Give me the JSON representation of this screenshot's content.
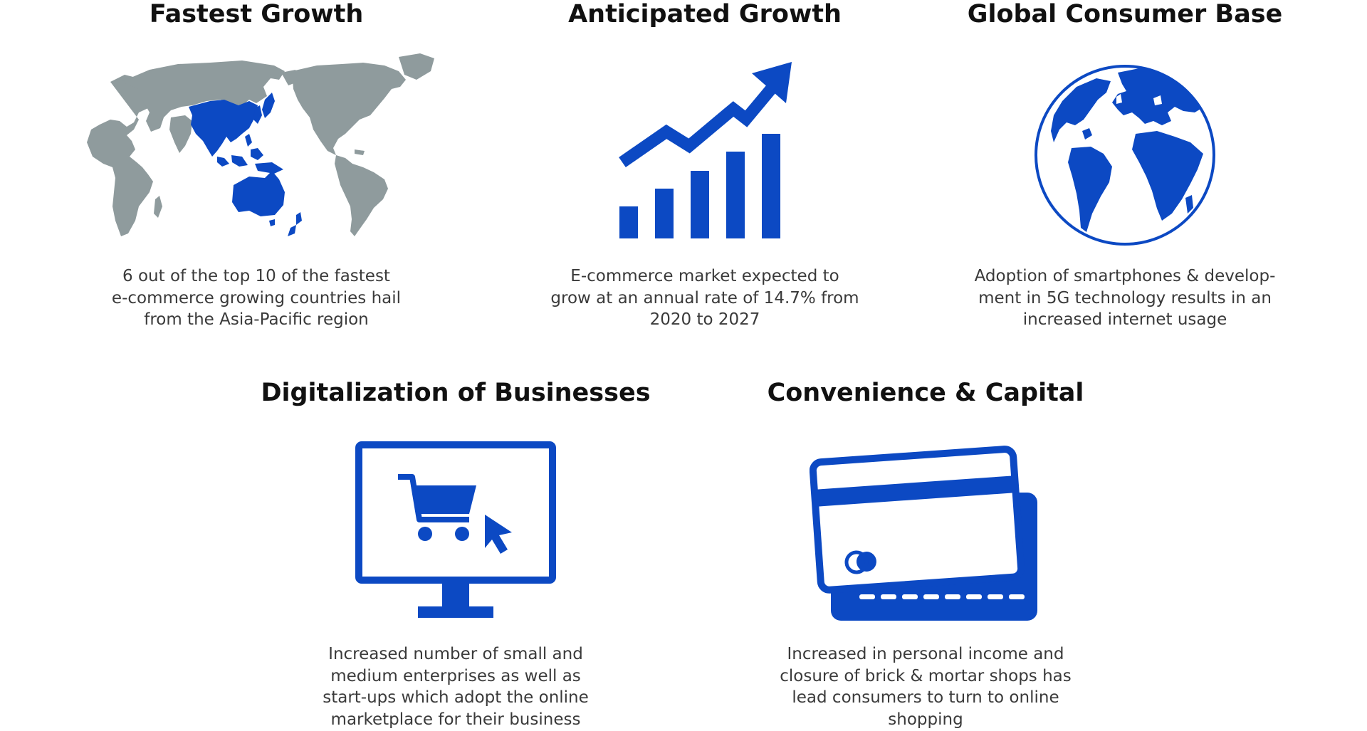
{
  "colors": {
    "accent": "#0c49c3",
    "map_land": "#8f9b9d",
    "text": "#3a3a3a",
    "title": "#111111"
  },
  "cards": [
    {
      "title": "Fastest Growth",
      "icon": "world-map-icon",
      "lines": [
        "6 out of the top 10 of the fastest",
        "e-commerce growing countries hail",
        "from the Asia-Pacific region"
      ]
    },
    {
      "title": "Anticipated Growth",
      "icon": "growth-chart-icon",
      "lines": [
        "E-commerce market expected to",
        "grow at an annual rate of 14.7% from",
        "2020 to 2027"
      ]
    },
    {
      "title": "Global Consumer Base",
      "icon": "globe-icon",
      "lines": [
        "Adoption of smartphones & develop-",
        "ment in 5G technology results in an",
        "increased internet usage"
      ]
    },
    {
      "title": "Digitalization of Businesses",
      "icon": "monitor-cart-icon",
      "lines": [
        "Increased number of small and",
        "medium enterprises as well as",
        "start-ups which adopt the online",
        "marketplace for their business"
      ]
    },
    {
      "title": "Convenience & Capital",
      "icon": "credit-cards-icon",
      "lines": [
        "Increased in personal income and",
        "closure of brick & mortar shops has",
        "lead consumers to turn to online",
        "shopping"
      ]
    }
  ]
}
